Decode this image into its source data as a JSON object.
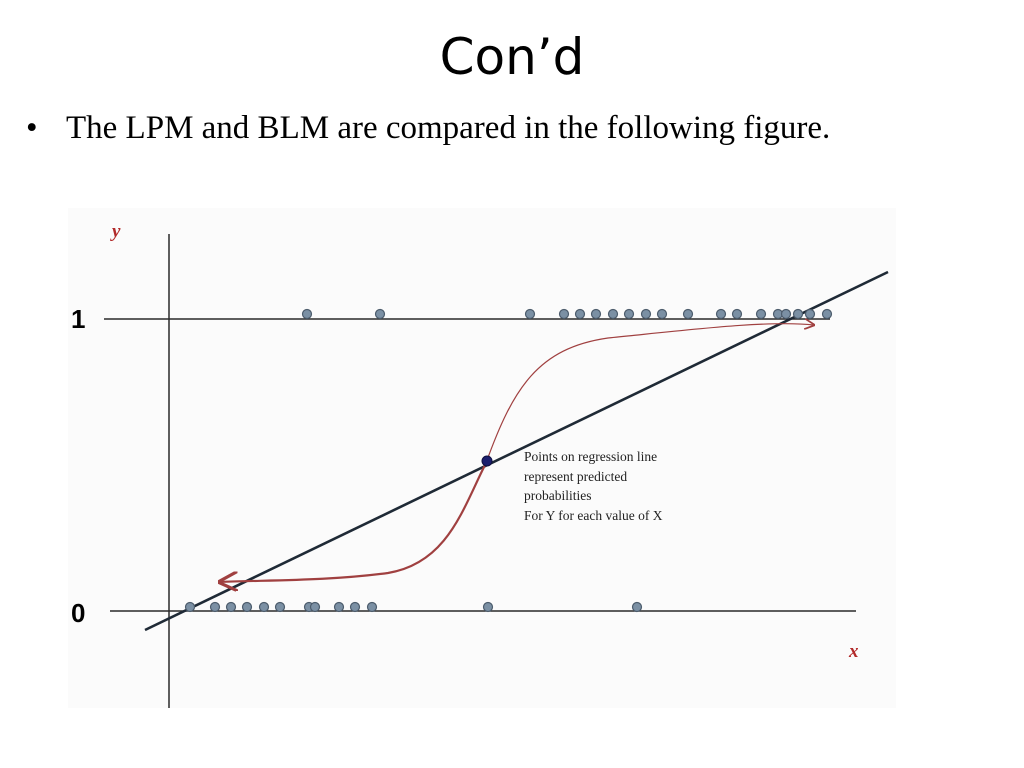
{
  "slide": {
    "title": "Con’d",
    "bullets": [
      {
        "symbol": "•",
        "text": "The LPM and BLM are compared in the following figure."
      }
    ]
  },
  "figure": {
    "y_axis_label": "y",
    "x_axis_label": "x",
    "level_high_label": "1",
    "level_low_label": "0",
    "annotation_lines": [
      "Points on regression line",
      "represent predicted",
      "probabilities",
      "For Y for each value of  X"
    ],
    "colors": {
      "axis": "#2a2a2a",
      "regression_line": "#1f2a36",
      "logistic_curve": "#a04040",
      "data_point_fill": "#7b90a4",
      "data_point_stroke": "#4c5c6c",
      "highlight_point": "#1c1f6e",
      "axis_label": "#b22a2a"
    }
  }
}
